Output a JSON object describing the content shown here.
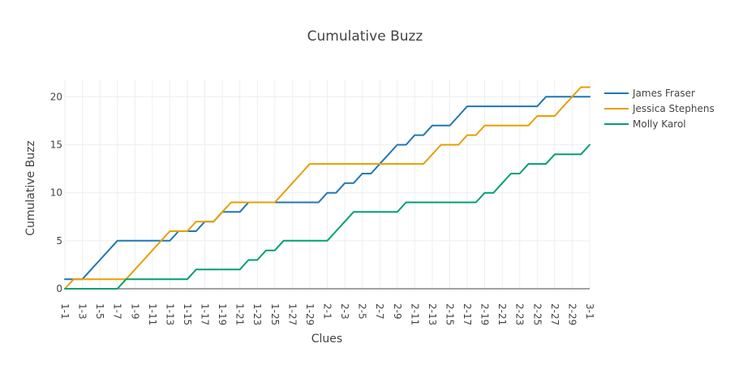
{
  "chart_data": {
    "type": "line",
    "title": "Cumulative Buzz",
    "xlabel": "Clues",
    "ylabel": "Cumulative Buzz",
    "ylim": [
      0,
      21.8
    ],
    "yticks": [
      0,
      5,
      10,
      15,
      20
    ],
    "legend_position": "top-right",
    "grid": true,
    "x": [
      "1-1",
      "1-2",
      "1-3",
      "1-4",
      "1-5",
      "1-6",
      "1-7",
      "1-8",
      "1-9",
      "1-10",
      "1-11",
      "1-12",
      "1-13",
      "1-14",
      "1-15",
      "1-16",
      "1-17",
      "1-18",
      "1-19",
      "1-20",
      "1-21",
      "1-22",
      "1-23",
      "1-24",
      "1-25",
      "1-26",
      "1-27",
      "1-28",
      "1-29",
      "1-30",
      "2-1",
      "2-2",
      "2-3",
      "2-4",
      "2-5",
      "2-6",
      "2-7",
      "2-8",
      "2-9",
      "2-10",
      "2-11",
      "2-12",
      "2-13",
      "2-14",
      "2-15",
      "2-16",
      "2-17",
      "2-18",
      "2-19",
      "2-20",
      "2-21",
      "2-22",
      "2-23",
      "2-24",
      "2-25",
      "2-26",
      "2-27",
      "2-28",
      "2-29",
      "2-30",
      "3-1"
    ],
    "x_tick_labels": [
      "1-1",
      "1-3",
      "1-5",
      "1-7",
      "1-9",
      "1-11",
      "1-13",
      "1-15",
      "1-17",
      "1-19",
      "1-21",
      "1-23",
      "1-25",
      "1-27",
      "1-29",
      "2-1",
      "2-3",
      "2-5",
      "2-7",
      "2-9",
      "2-11",
      "2-13",
      "2-15",
      "2-17",
      "2-19",
      "2-21",
      "2-23",
      "2-25",
      "2-27",
      "2-29",
      "3-1"
    ],
    "series": [
      {
        "name": "James Fraser",
        "color": "#1f77b4",
        "values": [
          1,
          1,
          1,
          2,
          3,
          4,
          5,
          5,
          5,
          5,
          5,
          5,
          5,
          6,
          6,
          6,
          7,
          7,
          8,
          8,
          8,
          9,
          9,
          9,
          9,
          9,
          9,
          9,
          9,
          9,
          10,
          10,
          11,
          11,
          12,
          12,
          13,
          14,
          15,
          15,
          16,
          16,
          17,
          17,
          17,
          18,
          19,
          19,
          19,
          19,
          19,
          19,
          19,
          19,
          19,
          20,
          20,
          20,
          20,
          20,
          20
        ]
      },
      {
        "name": "Jessica Stephens",
        "color": "#e69f00",
        "values": [
          0,
          1,
          1,
          1,
          1,
          1,
          1,
          1,
          2,
          3,
          4,
          5,
          6,
          6,
          6,
          7,
          7,
          7,
          8,
          9,
          9,
          9,
          9,
          9,
          9,
          10,
          11,
          12,
          13,
          13,
          13,
          13,
          13,
          13,
          13,
          13,
          13,
          13,
          13,
          13,
          13,
          13,
          14,
          15,
          15,
          15,
          16,
          16,
          17,
          17,
          17,
          17,
          17,
          17,
          18,
          18,
          18,
          19,
          20,
          21,
          21
        ]
      },
      {
        "name": "Molly Karol",
        "color": "#009e73",
        "values": [
          0,
          0,
          0,
          0,
          0,
          0,
          0,
          1,
          1,
          1,
          1,
          1,
          1,
          1,
          1,
          2,
          2,
          2,
          2,
          2,
          2,
          3,
          3,
          4,
          4,
          5,
          5,
          5,
          5,
          5,
          5,
          6,
          7,
          8,
          8,
          8,
          8,
          8,
          8,
          9,
          9,
          9,
          9,
          9,
          9,
          9,
          9,
          9,
          10,
          10,
          11,
          12,
          12,
          13,
          13,
          13,
          14,
          14,
          14,
          14,
          15
        ]
      }
    ]
  }
}
